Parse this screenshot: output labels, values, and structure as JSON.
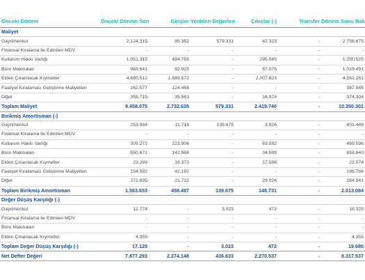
{
  "headers": [
    "Önceki Dönem",
    "Önceki Dönem Sonu Bakiyesi",
    "Girişler",
    "Yeniden Değerleme Artışları",
    "Çıkışlar (-)",
    "Transfer",
    "Dönem Sonu Bakiyesi"
  ],
  "rows": [
    {
      "type": "section",
      "cells": [
        "Maliyet",
        "",
        "",
        "",
        "",
        "",
        ""
      ]
    },
    {
      "type": "row",
      "cells": [
        "Gayrimenkul",
        "2.124.315",
        "95.352",
        "579.331",
        "42.323",
        "-",
        "2.756.675"
      ]
    },
    {
      "type": "row",
      "cells": [
        "Finansal Kiralama ile Edinilen MDV",
        "-",
        "-",
        "-",
        "-",
        "-",
        "-"
      ]
    },
    {
      "type": "row",
      "cells": [
        "Kullanım Hakkı Varlığı",
        "1.051.315",
        "494.755",
        "-",
        "295.545",
        "-",
        "1.250.525"
      ]
    },
    {
      "type": "row",
      "cells": [
        "Büro Makinaları",
        "983.641",
        "92.925",
        "-",
        "57.075",
        "-",
        "1.019.491"
      ]
    },
    {
      "type": "row",
      "cells": [
        "Elden Çıkarılacak Kıymetler",
        "4.680.512",
        "1.889.572",
        "-",
        "2.007.823",
        "-",
        "4.562.261"
      ]
    },
    {
      "type": "row",
      "cells": [
        "Faaliyet Kiralaması Geliştirme Maliyetleri",
        "262.577",
        "124.468",
        "-",
        "-",
        "-",
        "387.045"
      ]
    },
    {
      "type": "row",
      "cells": [
        "Diğer",
        "355.715",
        "35.563",
        "-",
        "16.974",
        "-",
        "374.304"
      ]
    },
    {
      "type": "total",
      "cells": [
        "Toplam Maliyet",
        "9.458.075",
        "2.732.635",
        "579.331",
        "2.419.740",
        "-",
        "10.350.301"
      ]
    },
    {
      "type": "section",
      "cells": [
        "Birikmiş Amortisman (-)",
        "",
        "",
        "",
        "",
        "",
        ""
      ]
    },
    {
      "type": "row",
      "cells": [
        "Gayrimenkul",
        "253.984",
        "11.716",
        "139.675",
        "3.926",
        "-",
        "401.449"
      ]
    },
    {
      "type": "row",
      "cells": [
        "Finansal Kiralama ile Edinilen MDV",
        "-",
        "-",
        "-",
        "-",
        "-",
        "-"
      ]
    },
    {
      "type": "row",
      "cells": [
        "Kullanım Hakkı Varlığı",
        "309.272",
        "223.906",
        "-",
        "63.582",
        "-",
        "469.596"
      ]
    },
    {
      "type": "row",
      "cells": [
        "Büro Makinaları",
        "550.671",
        "142.568",
        "-",
        "34.599",
        "-",
        "658.640"
      ]
    },
    {
      "type": "row",
      "cells": [
        "Elden Çıkarılacak Kıymetler",
        "23.299",
        "16.373",
        "-",
        "17.598",
        "-",
        "22.074"
      ]
    },
    {
      "type": "row",
      "cells": [
        "Faaliyet Kiralaması Geliştirme Maliyetleri",
        "154.592",
        "42.192",
        "-",
        "-",
        "-",
        "196.784"
      ]
    },
    {
      "type": "row",
      "cells": [
        "Diğer",
        "271.835",
        "21.732",
        "-",
        "29.026",
        "-",
        "264.541"
      ]
    },
    {
      "type": "total",
      "cells": [
        "Toplam Birikmiş Amortisman",
        "1.563.653",
        "458.487",
        "139.675",
        "148.731",
        "-",
        "2.013.084"
      ]
    },
    {
      "type": "section",
      "cells": [
        "Değer Düşüş Karşılığı (-)",
        "",
        "",
        "",
        "",
        "",
        ""
      ]
    },
    {
      "type": "row",
      "cells": [
        "Gayrimenkul",
        "12.774",
        "-",
        "3.023",
        "472",
        "-",
        "15.325"
      ]
    },
    {
      "type": "row",
      "cells": [
        "Finansal Kiralama ile Edinilen MDV",
        "-",
        "-",
        "-",
        "-",
        "-",
        "-"
      ]
    },
    {
      "type": "row",
      "cells": [
        "Büro Makinaları",
        "-",
        "-",
        "-",
        "-",
        "-",
        "-"
      ]
    },
    {
      "type": "row",
      "cells": [
        "Elden Çıkarılacak Kıymetler",
        "4.355",
        "-",
        "-",
        "-",
        "-",
        "4.355"
      ]
    },
    {
      "type": "total",
      "cells": [
        "Toplam Değer Düşüş Karşılığı (-)",
        "17.129",
        "-",
        "3.023",
        "472",
        "-",
        "19.680"
      ]
    },
    {
      "type": "total",
      "cells": [
        "Net Defter Değeri",
        "7.877.293",
        "2.274.148",
        "436.633",
        "2.270.537",
        "-",
        "8.317.537"
      ]
    }
  ]
}
